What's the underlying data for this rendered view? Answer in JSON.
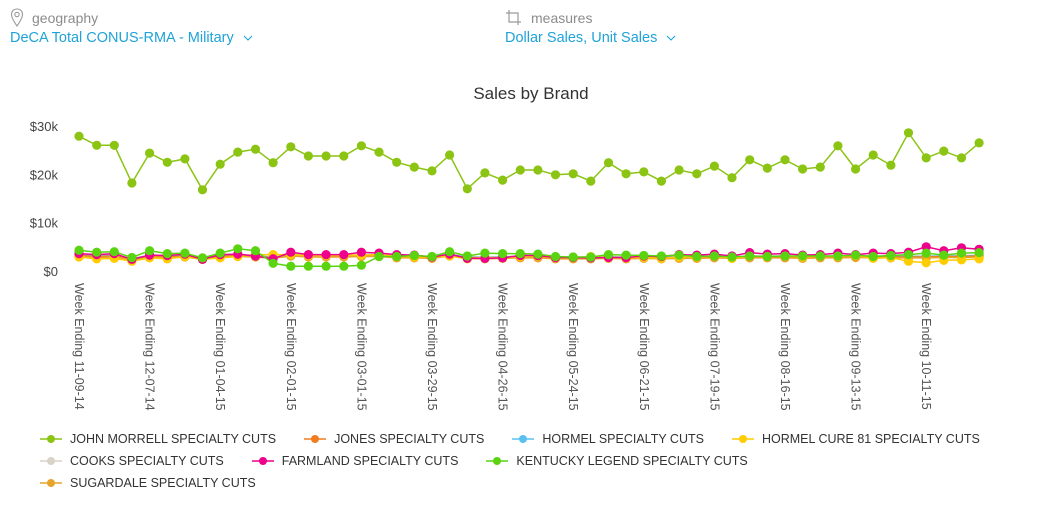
{
  "filters": {
    "geography": {
      "label": "geography",
      "value": "DeCA Total CONUS-RMA - Military",
      "icon": "map-pin-icon"
    },
    "measures": {
      "label": "measures",
      "value": "Dollar Sales, Unit Sales",
      "icon": "crop-icon"
    }
  },
  "chart_data": {
    "type": "line",
    "title": "Sales by Brand",
    "xlabel": "",
    "ylabel": "",
    "ylim": [
      0,
      30000
    ],
    "yticks": [
      {
        "value": 0,
        "label": "$0"
      },
      {
        "value": 10000,
        "label": "$10k"
      },
      {
        "value": 20000,
        "label": "$20k"
      },
      {
        "value": 30000,
        "label": "$30k"
      }
    ],
    "grid": false,
    "legend_position": "bottom",
    "x_count": 52,
    "x_tick_labels": [
      {
        "index": 0,
        "label": "Week Ending 11-09-14"
      },
      {
        "index": 4,
        "label": "Week Ending 12-07-14"
      },
      {
        "index": 8,
        "label": "Week Ending 01-04-15"
      },
      {
        "index": 12,
        "label": "Week Ending 02-01-15"
      },
      {
        "index": 16,
        "label": "Week Ending 03-01-15"
      },
      {
        "index": 20,
        "label": "Week Ending 03-29-15"
      },
      {
        "index": 24,
        "label": "Week Ending 04-26-15"
      },
      {
        "index": 28,
        "label": "Week Ending 05-24-15"
      },
      {
        "index": 32,
        "label": "Week Ending 06-21-15"
      },
      {
        "index": 36,
        "label": "Week Ending 07-19-15"
      },
      {
        "index": 40,
        "label": "Week Ending 08-16-15"
      },
      {
        "index": 44,
        "label": "Week Ending 09-13-15"
      },
      {
        "index": 48,
        "label": "Week Ending 10-11-15"
      }
    ],
    "series": [
      {
        "name": "COOKS SPECIALTY CUTS",
        "color": "#d9d3c7",
        "legend_row": 1,
        "values": [
          3400,
          3200,
          3300,
          2600,
          3300,
          3100,
          3300,
          2700,
          3200,
          3400,
          3300,
          2900,
          3500,
          3300,
          3300,
          3300,
          3400,
          3400,
          3100,
          3100,
          3000,
          3500,
          3000,
          2900,
          3000,
          3100,
          3100,
          2900,
          2900,
          2900,
          3000,
          2900,
          3000,
          2900,
          3000,
          3000,
          3100,
          3000,
          3100,
          3100,
          3100,
          3000,
          3100,
          3100,
          3200,
          3100,
          3100,
          3100,
          3100,
          3200,
          3200,
          3300
        ]
      },
      {
        "name": "HORMEL SPECIALTY CUTS",
        "color": "#5bc0f0",
        "legend_row": 0,
        "values": [
          3300,
          3100,
          3200,
          2500,
          3200,
          3000,
          3200,
          2600,
          3100,
          3300,
          3200,
          2800,
          3400,
          3200,
          3200,
          3200,
          3300,
          3300,
          3000,
          3000,
          2900,
          3400,
          2900,
          2800,
          2900,
          3000,
          3000,
          2800,
          2800,
          2800,
          2900,
          2800,
          2900,
          2800,
          2900,
          2900,
          3000,
          2900,
          3000,
          3000,
          3000,
          2900,
          3000,
          3000,
          3100,
          3000,
          3000,
          3000,
          3000,
          3100,
          3100,
          3200
        ]
      },
      {
        "name": "JONES SPECIALTY CUTS",
        "color": "#f07d1e",
        "legend_row": 0,
        "values": [
          3200,
          3000,
          3100,
          2400,
          3100,
          2900,
          3100,
          2500,
          3000,
          3200,
          3100,
          2700,
          3300,
          3100,
          3100,
          3100,
          3200,
          3200,
          2900,
          2900,
          2800,
          3300,
          2800,
          2700,
          2800,
          2900,
          2900,
          2700,
          2700,
          2700,
          2800,
          2700,
          2800,
          2700,
          2800,
          2800,
          2900,
          2800,
          2900,
          2900,
          2900,
          2800,
          2900,
          2900,
          3000,
          2900,
          2900,
          2900,
          2900,
          3000,
          3000,
          3100
        ]
      },
      {
        "name": "SUGARDALE SPECIALTY CUTS",
        "color": "#e6a42a",
        "legend_row": 2,
        "values": [
          3000,
          2800,
          2900,
          2300,
          2900,
          2700,
          2900,
          2400,
          2800,
          3000,
          2900,
          2600,
          3100,
          2900,
          2900,
          2900,
          3000,
          3000,
          2700,
          2700,
          2600,
          3100,
          2600,
          2500,
          2600,
          2700,
          2700,
          2500,
          2500,
          2500,
          2600,
          2500,
          2600,
          2500,
          2600,
          2600,
          2700,
          2600,
          2700,
          2700,
          2700,
          2600,
          2700,
          2700,
          2800,
          2700,
          2700,
          2700,
          2700,
          2800,
          2800,
          2900
        ]
      },
      {
        "name": "HORMEL CURE 81 SPECIALTY CUTS",
        "color": "#ffcc00",
        "legend_row": 0,
        "values": [
          2900,
          2500,
          2600,
          2000,
          2700,
          2500,
          3000,
          2400,
          2700,
          3000,
          3400,
          3400,
          3400,
          3200,
          3200,
          3300,
          3300,
          3400,
          3000,
          2900,
          2900,
          3100,
          2500,
          2800,
          2700,
          3000,
          3100,
          2800,
          2700,
          3000,
          2700,
          2800,
          2800,
          2600,
          2900,
          2900,
          3100,
          2600,
          3100,
          3000,
          3100,
          2900,
          3100,
          3000,
          3200,
          2600,
          2800,
          2000,
          1700,
          2200,
          2300,
          2500
        ]
      },
      {
        "name": "FARMLAND SPECIALTY CUTS",
        "color": "#ec008c",
        "legend_row": 1,
        "values": [
          3600,
          3400,
          3600,
          2400,
          3300,
          3200,
          3500,
          2400,
          3400,
          3500,
          3100,
          2500,
          3900,
          3400,
          3400,
          3400,
          3900,
          3700,
          3400,
          3300,
          2900,
          3500,
          2600,
          2600,
          2700,
          3200,
          3200,
          2800,
          2800,
          2700,
          2800,
          2800,
          3100,
          3000,
          3400,
          3300,
          3500,
          3100,
          3800,
          3500,
          3600,
          3300,
          3400,
          3700,
          3400,
          3700,
          3600,
          3900,
          5000,
          4200,
          4800,
          4500
        ]
      },
      {
        "name": "KENTUCKY LEGEND SPECIALTY CUTS",
        "color": "#5ad310",
        "legend_row": 1,
        "values": [
          4300,
          3900,
          4000,
          2800,
          4200,
          3600,
          3700,
          2700,
          3700,
          4600,
          4200,
          1600,
          1000,
          1000,
          1000,
          1000,
          1200,
          3000,
          3000,
          3200,
          3000,
          4000,
          3100,
          3700,
          3600,
          3600,
          3500,
          3000,
          2900,
          2900,
          3400,
          3300,
          3200,
          3100,
          3300,
          3000,
          3100,
          2900,
          3100,
          3000,
          3100,
          3100,
          3100,
          3100,
          3300,
          3000,
          3200,
          3400,
          3700,
          3300,
          3700,
          3800
        ]
      },
      {
        "name": "JOHN MORRELL SPECIALTY CUTS",
        "color": "#8cc414",
        "legend_row": 0,
        "values": [
          27900,
          26000,
          26000,
          18200,
          24400,
          22500,
          23200,
          16800,
          22100,
          24600,
          25200,
          22400,
          25700,
          23800,
          23800,
          23800,
          25900,
          24600,
          22500,
          21500,
          20700,
          24000,
          17000,
          20300,
          18800,
          20900,
          20900,
          19900,
          20100,
          18600,
          22400,
          20100,
          20500,
          18600,
          20900,
          20100,
          21700,
          19300,
          23000,
          21300,
          23000,
          21100,
          21500,
          25900,
          21100,
          24000,
          21900,
          28600,
          23400,
          24800,
          23400,
          26500
        ]
      }
    ],
    "legend_order": [
      "JOHN MORRELL SPECIALTY CUTS",
      "JONES SPECIALTY CUTS",
      "HORMEL SPECIALTY CUTS",
      "HORMEL CURE 81 SPECIALTY CUTS",
      "COOKS SPECIALTY CUTS",
      "FARMLAND SPECIALTY CUTS",
      "KENTUCKY LEGEND SPECIALTY CUTS",
      "SUGARDALE SPECIALTY CUTS"
    ]
  }
}
